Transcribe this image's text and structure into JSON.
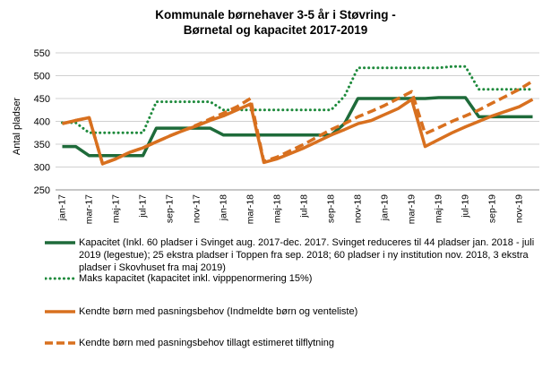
{
  "chart_data": {
    "type": "line",
    "title": [
      "Kommunale  børnehaver 3-5 år i Støvring -",
      "Børnetal og kapacitet 2017-2019"
    ],
    "ylabel": "Antal pladser",
    "ylim": [
      250,
      550
    ],
    "yticks": [
      250,
      300,
      350,
      400,
      450,
      500,
      550
    ],
    "grid": true,
    "x_tick_labels": [
      "jan-17",
      "mar-17",
      "maj-17",
      "jul-17",
      "sep-17",
      "nov-17",
      "jan-18",
      "mar-18",
      "maj-18",
      "jul-18",
      "sep-18",
      "nov-18",
      "jan-19",
      "mar-19",
      "maj-19",
      "jul-19",
      "sep-19",
      "nov-19"
    ],
    "x_months": [
      "jan-17",
      "feb-17",
      "mar-17",
      "apr-17",
      "maj-17",
      "jun-17",
      "jul-17",
      "aug-17",
      "sep-17",
      "okt-17",
      "nov-17",
      "dec-17",
      "jan-18",
      "feb-18",
      "mar-18",
      "apr-18",
      "maj-18",
      "jun-18",
      "jul-18",
      "aug-18",
      "sep-18",
      "okt-18",
      "nov-18",
      "dec-18",
      "jan-19",
      "feb-19",
      "mar-19",
      "apr-19",
      "maj-19",
      "jun-19",
      "jul-19",
      "aug-19",
      "sep-19",
      "okt-19",
      "nov-19",
      "dec-19"
    ],
    "series": [
      {
        "name": "Kapacitet (Inkl. 60 pladser i Svinget aug. 2017-dec. 2017. Svinget reduceres til 44 pladser jan. 2018 - juli 2019 (legestue); 25 ekstra pladser i Toppen fra sep. 2018; 60 pladser i ny institution nov. 2018, 3 ekstra pladser i Skovhuset fra maj 2019)",
        "color": "#1e6b3a",
        "style": "solid",
        "values": [
          345,
          345,
          325,
          325,
          325,
          325,
          325,
          385,
          385,
          385,
          385,
          385,
          370,
          370,
          370,
          370,
          370,
          370,
          370,
          370,
          370,
          395,
          450,
          450,
          450,
          450,
          450,
          450,
          452,
          452,
          452,
          410,
          410,
          410,
          410,
          410
        ]
      },
      {
        "name": "Maks kapacitet (kapacitet inkl. vipppenormering 15%)",
        "color": "#1e8a3c",
        "style": "dotted",
        "values": [
          397,
          397,
          375,
          375,
          375,
          375,
          375,
          443,
          443,
          443,
          443,
          443,
          425,
          425,
          425,
          425,
          425,
          425,
          425,
          425,
          425,
          455,
          517,
          517,
          517,
          517,
          517,
          517,
          517,
          520,
          520,
          470,
          470,
          470,
          470,
          470
        ]
      },
      {
        "name": "Kendte børn med pasningsbehov (Indmeldte børn og venteliste)",
        "color": "#d8701f",
        "style": "solid",
        "values": [
          395,
          402,
          408,
          307,
          318,
          332,
          342,
          355,
          368,
          380,
          390,
          402,
          412,
          425,
          438,
          310,
          318,
          330,
          342,
          356,
          370,
          382,
          395,
          402,
          415,
          428,
          448,
          345,
          360,
          375,
          388,
          400,
          412,
          422,
          432,
          448
        ]
      },
      {
        "name": "Kendte børn med pasningsbehov tillagt estimeret tilflytning",
        "color": "#d8701f",
        "style": "dashed",
        "values": [
          395,
          402,
          408,
          307,
          318,
          332,
          342,
          355,
          368,
          380,
          392,
          405,
          418,
          432,
          450,
          312,
          322,
          336,
          350,
          366,
          382,
          395,
          410,
          422,
          435,
          450,
          465,
          373,
          386,
          400,
          412,
          425,
          440,
          455,
          470,
          488
        ]
      }
    ]
  }
}
